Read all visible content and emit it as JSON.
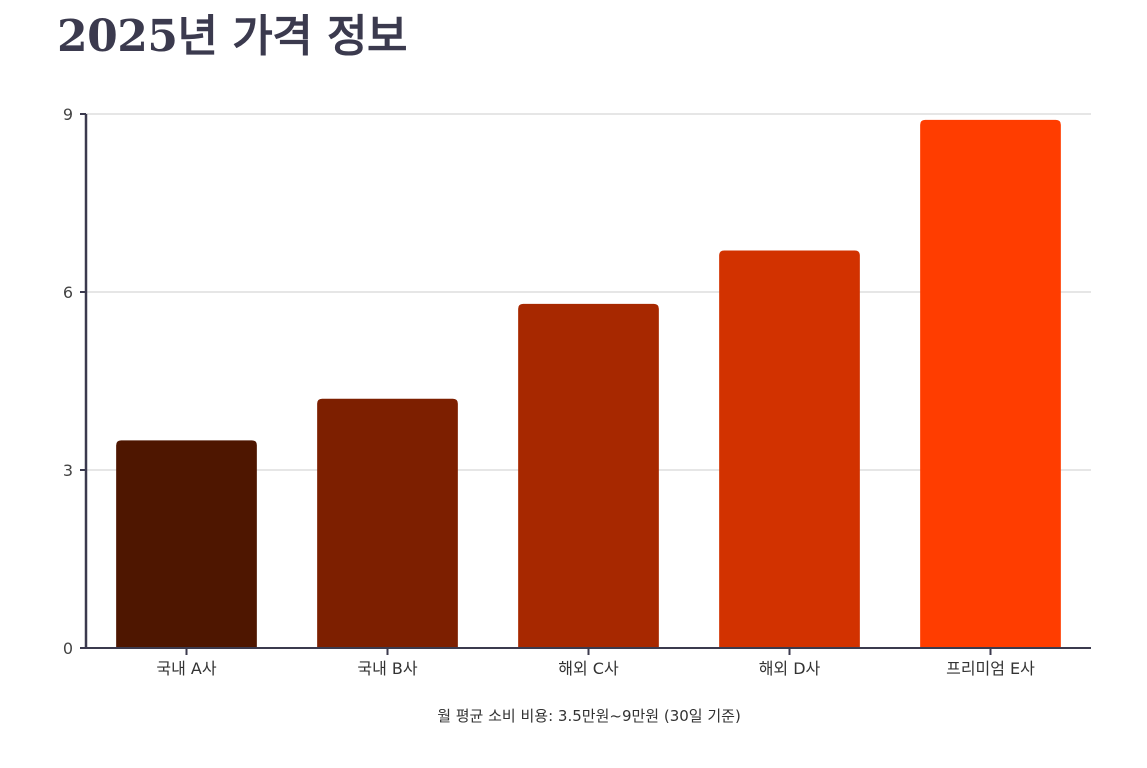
{
  "page": {
    "title": "2025년 가격 정보"
  },
  "chart_data": {
    "type": "bar",
    "title": "2025년 가격 정보",
    "xlabel": "월 평균 소비 비용: 3.5만원~9만원 (30일 기준)",
    "ylabel": "",
    "categories": [
      "국내 A사",
      "국내 B사",
      "해외 C사",
      "해외 D사",
      "프리미엄 E사"
    ],
    "values": [
      3.5,
      4.2,
      5.8,
      6.7,
      8.9
    ],
    "bar_colors": [
      "#4e1600",
      "#7d1f00",
      "#a72800",
      "#d23200",
      "#ff3d00"
    ],
    "ylim": [
      0,
      9
    ],
    "yticks": [
      0,
      3,
      6,
      9
    ],
    "grid": true,
    "legend": "none"
  }
}
